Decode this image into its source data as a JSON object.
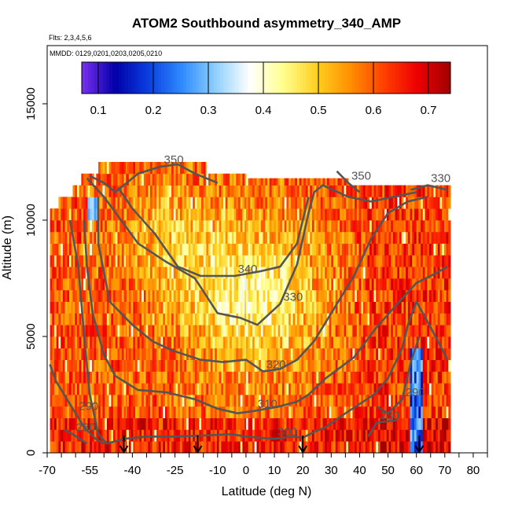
{
  "chart_data": {
    "type": "heatmap",
    "title": "ATOM2 Southbound asymmetry_340_AMP",
    "flights_label": "Flts: 2,3,4,5,6",
    "dates_label": "MMDD: 0129,0201,0203,0205,0210",
    "xlabel": "Latitude (deg N)",
    "ylabel": "Altitude (m)",
    "xlim": [
      -70,
      85
    ],
    "ylim": [
      0,
      17500
    ],
    "x_ticks": [
      -70,
      -55,
      -40,
      -25,
      -10,
      0,
      10,
      20,
      30,
      40,
      50,
      60,
      70,
      80
    ],
    "y_ticks": [
      0,
      5000,
      10000,
      15000
    ],
    "colorbar": {
      "range": [
        0.07,
        0.74
      ],
      "ticks": [
        0.1,
        0.2,
        0.3,
        0.4,
        0.5,
        0.6,
        0.7
      ],
      "colors": [
        "#7b2ff0",
        "#0000a8",
        "#0a3fe0",
        "#2f8cff",
        "#8fd0ff",
        "#ffffff",
        "#ffff90",
        "#ffd020",
        "#ff9000",
        "#ff4000",
        "#ee0000",
        "#a00000"
      ]
    },
    "coverage": [
      {
        "lat": [
          -69,
          -66
        ],
        "alt": [
          0,
          10500
        ]
      },
      {
        "lat": [
          -66,
          -61
        ],
        "alt": [
          0,
          11000
        ]
      },
      {
        "lat": [
          -61,
          -58
        ],
        "alt": [
          0,
          11500
        ]
      },
      {
        "lat": [
          -58,
          -52
        ],
        "alt": [
          0,
          12000
        ]
      },
      {
        "lat": [
          -52,
          -42
        ],
        "alt": [
          0,
          12500
        ]
      },
      {
        "lat": [
          -42,
          -14
        ],
        "alt": [
          0,
          12500
        ]
      },
      {
        "lat": [
          -14,
          0
        ],
        "alt": [
          0,
          12000
        ]
      },
      {
        "lat": [
          0,
          36
        ],
        "alt": [
          0,
          11800
        ]
      },
      {
        "lat": [
          36,
          72
        ],
        "alt": [
          0,
          11500
        ]
      }
    ],
    "potential_temperature_contours": [
      {
        "label": "280",
        "points": [
          [
            -64,
            1000
          ],
          [
            -61,
            800
          ],
          [
            -56,
            400
          ]
        ]
      },
      {
        "label": "280",
        "points": [
          [
            43,
            700
          ],
          [
            46,
            1300
          ],
          [
            53,
            1400
          ]
        ]
      },
      {
        "label": "290",
        "points": [
          [
            -69,
            3800
          ],
          [
            -67,
            3100
          ],
          [
            -63,
            2300
          ],
          [
            -60,
            1700
          ],
          [
            -57,
            1100
          ],
          [
            -53,
            600
          ],
          [
            -50,
            400
          ]
        ]
      },
      {
        "label": "290",
        "points": [
          [
            46,
            2000
          ],
          [
            50,
            1700
          ],
          [
            55,
            2300
          ],
          [
            58,
            3900
          ],
          [
            61,
            5000
          ]
        ]
      },
      {
        "label": "300",
        "points": [
          [
            -62,
            10000
          ],
          [
            -59,
            8000
          ],
          [
            -57,
            5000
          ],
          [
            -55,
            2500
          ],
          [
            -52,
            800
          ],
          [
            -49,
            400
          ],
          [
            -43,
            600
          ],
          [
            -35,
            700
          ],
          [
            -25,
            700
          ],
          [
            -14,
            750
          ],
          [
            -5,
            800
          ],
          [
            0,
            700
          ],
          [
            10,
            600
          ],
          [
            16,
            700
          ],
          [
            20,
            650
          ],
          [
            24,
            900
          ],
          [
            28,
            1100
          ],
          [
            35,
            1700
          ],
          [
            45,
            2500
          ],
          [
            50,
            3200
          ],
          [
            55,
            4500
          ],
          [
            57,
            5500
          ],
          [
            60,
            6500
          ],
          [
            65,
            5400
          ],
          [
            71,
            4000
          ]
        ]
      },
      {
        "label": "310",
        "points": [
          [
            -57,
            10000
          ],
          [
            -56,
            8000
          ],
          [
            -54,
            6000
          ],
          [
            -50,
            4200
          ],
          [
            -46,
            3300
          ],
          [
            -38,
            2700
          ],
          [
            -28,
            2600
          ],
          [
            -18,
            2300
          ],
          [
            -10,
            1900
          ],
          [
            -3,
            1700
          ],
          [
            3,
            1800
          ],
          [
            12,
            2000
          ],
          [
            18,
            2200
          ],
          [
            22,
            2500
          ],
          [
            28,
            3200
          ],
          [
            38,
            4100
          ],
          [
            46,
            5400
          ],
          [
            54,
            6500
          ],
          [
            60,
            7300
          ],
          [
            65,
            7600
          ],
          [
            71,
            8000
          ]
        ]
      },
      {
        "label": "320",
        "points": [
          [
            -52,
            11000
          ],
          [
            -52,
            9000
          ],
          [
            -48,
            6500
          ],
          [
            -40,
            5500
          ],
          [
            -33,
            4800
          ],
          [
            -26,
            4400
          ],
          [
            -16,
            4000
          ],
          [
            -8,
            3900
          ],
          [
            0,
            4000
          ],
          [
            6,
            3500
          ],
          [
            12,
            3600
          ],
          [
            18,
            4000
          ],
          [
            24,
            4800
          ],
          [
            30,
            6000
          ],
          [
            38,
            7600
          ],
          [
            44,
            9200
          ],
          [
            50,
            10300
          ],
          [
            57,
            10800
          ],
          [
            64,
            11000
          ]
        ]
      },
      {
        "label": "330",
        "points": [
          [
            -56,
            11800
          ],
          [
            -50,
            11000
          ],
          [
            -44,
            10000
          ],
          [
            -38,
            9000
          ],
          [
            -28,
            8200
          ],
          [
            -18,
            7500
          ],
          [
            -10,
            6000
          ],
          [
            -2,
            5800
          ],
          [
            4,
            5500
          ],
          [
            12,
            6400
          ],
          [
            18,
            8100
          ],
          [
            22,
            10300
          ],
          [
            24,
            11200
          ],
          [
            27,
            11500
          ],
          [
            36,
            11000
          ],
          [
            44,
            10800
          ],
          [
            52,
            11000
          ],
          [
            60,
            11200
          ]
        ]
      },
      {
        "label": "340",
        "points": [
          [
            -45,
            11400
          ],
          [
            -40,
            10500
          ],
          [
            -32,
            9400
          ],
          [
            -24,
            8000
          ],
          [
            -16,
            7600
          ],
          [
            -4,
            7600
          ],
          [
            5,
            7800
          ],
          [
            12,
            8000
          ],
          [
            18,
            9000
          ],
          [
            22,
            11000
          ]
        ]
      },
      {
        "label": "350",
        "points": [
          [
            -55,
            11900
          ],
          [
            -50,
            11600
          ],
          [
            -46,
            11200
          ],
          [
            -38,
            12000
          ],
          [
            -30,
            12300
          ],
          [
            -24,
            12400
          ],
          [
            -18,
            12000
          ],
          [
            -10,
            11600
          ]
        ]
      },
      {
        "label": "350",
        "points": [
          [
            32,
            12100
          ],
          [
            36,
            11600
          ],
          [
            40,
            11200
          ]
        ]
      },
      {
        "label": "330",
        "points": [
          [
            58,
            11300
          ],
          [
            64,
            11500
          ],
          [
            71,
            11300
          ]
        ]
      }
    ],
    "arrow_latitudes": [
      -43,
      -17,
      20,
      61
    ]
  }
}
